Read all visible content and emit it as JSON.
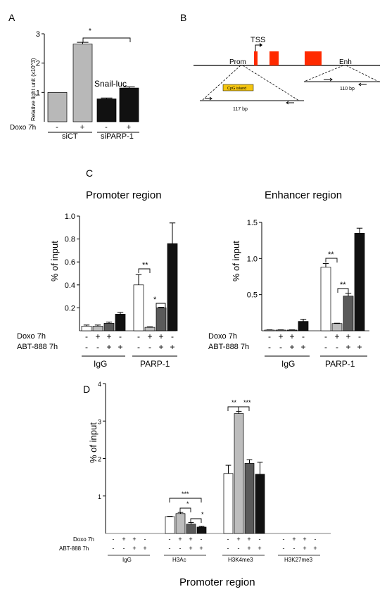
{
  "panel_labels": {
    "a": "A",
    "b": "B",
    "c": "C",
    "d": "D"
  },
  "panel_b": {
    "tss_label": "TSS",
    "prom_label": "Prom",
    "enh_label": "Enh",
    "cpg_label": "CpG island",
    "prom_amplicon": "117 bp",
    "enh_amplicon": "110 bp",
    "exon_color": "#ff2a00",
    "cpg_color": "#f3c40f"
  },
  "panel_c": {
    "promoter_title": "Promoter region",
    "enhancer_title": "Enhancer region"
  },
  "panel_d": {
    "bottom_title": "Promoter region"
  },
  "treatment_rows": {
    "doxo": "Doxo 7h",
    "abt": "ABT-888 7h",
    "ab_doxo": [
      "-",
      "+",
      "+",
      "-"
    ],
    "ab_abt": [
      "-",
      "-",
      "+",
      "+"
    ],
    "a_doxo": [
      "-",
      "+",
      "-",
      "+"
    ]
  },
  "significance": {
    "single": "*",
    "double": "**",
    "triple": "***"
  },
  "colors": {
    "light_gray": "#b8b8b8",
    "black": "#111111",
    "gray1": "#bdbdbd",
    "gray2": "#5a5a5a",
    "white": "#ffffff"
  },
  "chart_data": [
    {
      "id": "A",
      "type": "bar",
      "title": "Snail-luc",
      "xlabel": "",
      "ylabel": "Relative light unit (x10^3)",
      "ylim": [
        0,
        3
      ],
      "yticks": [
        "1",
        "2",
        "3"
      ],
      "group_labels": [
        "siCT",
        "siPARP-1"
      ],
      "categories": [
        "siCT -",
        "siCT +",
        "siPARP-1 -",
        "siPARP-1 +"
      ],
      "values": [
        1.0,
        2.65,
        0.78,
        1.15
      ],
      "errors": [
        0,
        0.06,
        0.03,
        0.04
      ]
    },
    {
      "id": "C-promoter",
      "type": "bar",
      "title": "Promoter region",
      "xlabel": "",
      "ylabel": "% of input",
      "ylim": [
        0,
        1.0
      ],
      "yticks": [
        "0.2",
        "0.4",
        "0.6",
        "0.8",
        "1.0"
      ],
      "group_labels": [
        "IgG",
        "PARP-1"
      ],
      "series": [
        {
          "group": "IgG",
          "values": [
            0.04,
            0.04,
            0.065,
            0.145
          ],
          "errors": [
            0.01,
            0.01,
            0.01,
            0.015
          ]
        },
        {
          "group": "PARP-1",
          "values": [
            0.4,
            0.03,
            0.2,
            0.76
          ],
          "errors": [
            0.09,
            0.005,
            0.005,
            0.18
          ]
        }
      ]
    },
    {
      "id": "C-enhancer",
      "type": "bar",
      "title": "Enhancer region",
      "xlabel": "",
      "ylabel": "% of input",
      "ylim": [
        0,
        1.5
      ],
      "yticks": [
        "0.5",
        "1.0",
        "1.5"
      ],
      "group_labels": [
        "IgG",
        "PARP-1"
      ],
      "series": [
        {
          "group": "IgG",
          "values": [
            0.01,
            0.01,
            0.01,
            0.13
          ],
          "errors": [
            0.003,
            0.003,
            0.003,
            0.03
          ]
        },
        {
          "group": "PARP-1",
          "values": [
            0.88,
            0.1,
            0.48,
            1.35
          ],
          "errors": [
            0.05,
            0.005,
            0.04,
            0.07
          ]
        }
      ]
    },
    {
      "id": "D",
      "type": "bar",
      "title": "Promoter region",
      "xlabel": "",
      "ylabel": "% of input",
      "ylim": [
        0,
        4
      ],
      "yticks": [
        "1",
        "2",
        "3",
        "4"
      ],
      "group_labels": [
        "IgG",
        "H3Ac",
        "H3K4me3",
        "H3K27me3"
      ],
      "series": [
        {
          "group": "IgG",
          "values": [
            0,
            0,
            0,
            0
          ],
          "errors": [
            0,
            0,
            0,
            0
          ]
        },
        {
          "group": "H3Ac",
          "values": [
            0.45,
            0.53,
            0.25,
            0.17
          ],
          "errors": [
            0.01,
            0.03,
            0.04,
            0.02
          ]
        },
        {
          "group": "H3K4me3",
          "values": [
            1.6,
            3.2,
            1.87,
            1.58
          ],
          "errors": [
            0.22,
            0.06,
            0.1,
            0.32
          ]
        },
        {
          "group": "H3K27me3",
          "values": [
            0,
            0,
            0,
            0
          ],
          "errors": [
            0,
            0,
            0,
            0
          ]
        }
      ]
    }
  ]
}
